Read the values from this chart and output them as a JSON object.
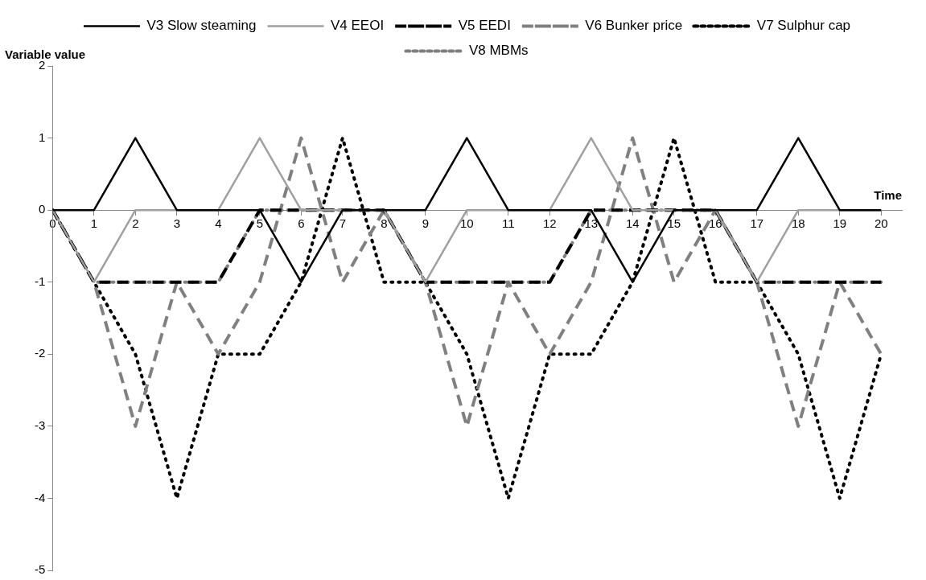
{
  "chart_data": {
    "type": "line",
    "xlabel": "Time",
    "ylabel": "Variable value",
    "x": [
      0,
      1,
      2,
      3,
      4,
      5,
      6,
      7,
      8,
      9,
      10,
      11,
      12,
      13,
      14,
      15,
      16,
      17,
      18,
      19,
      20
    ],
    "xlim": [
      0,
      20.5
    ],
    "xticks": [
      0,
      1,
      2,
      3,
      4,
      5,
      6,
      7,
      8,
      9,
      10,
      11,
      12,
      13,
      14,
      15,
      16,
      17,
      18,
      19,
      20
    ],
    "ylim": [
      -5,
      2
    ],
    "yticks": [
      -5,
      -4,
      -3,
      -2,
      -1,
      0,
      1,
      2
    ],
    "grid": false,
    "legend": "top",
    "marker": "none",
    "series": [
      {
        "name": "V3 Slow steaming",
        "color": "#000000",
        "line_style": "solid",
        "values": [
          0,
          0,
          1,
          0,
          0,
          0,
          -1,
          0,
          0,
          0,
          1,
          0,
          0,
          0,
          -1,
          0,
          0,
          0,
          1,
          0,
          0
        ]
      },
      {
        "name": "V4 EEOI",
        "color": "#a0a0a0",
        "line_style": "solid",
        "values": [
          0,
          -1,
          0,
          0,
          0,
          1,
          0,
          0,
          0,
          -1,
          0,
          0,
          0,
          1,
          0,
          0,
          0,
          -1,
          0,
          0,
          0
        ]
      },
      {
        "name": "V5 EEDI",
        "color": "#000000",
        "line_style": "dashed",
        "values": [
          0,
          -1,
          -1,
          -1,
          -1,
          0,
          0,
          0,
          0,
          -1,
          -1,
          -1,
          -1,
          0,
          0,
          0,
          0,
          -1,
          -1,
          -1,
          -1
        ]
      },
      {
        "name": "V6 Bunker price",
        "color": "#808080",
        "line_style": "dashed",
        "values": [
          0,
          -1,
          -3,
          -1,
          -2,
          -1,
          1,
          -1,
          0,
          -1,
          -3,
          -1,
          -2,
          -1,
          1,
          -1,
          0,
          -1,
          -3,
          -1,
          -2
        ]
      },
      {
        "name": "V7 Sulphur cap",
        "color": "#000000",
        "line_style": "dotted",
        "values": [
          0,
          -1,
          -2,
          -4,
          -2,
          -2,
          -1,
          1,
          -1,
          -1,
          -2,
          -4,
          -2,
          -2,
          -1,
          1,
          -1,
          -1,
          -2,
          -4,
          -2
        ]
      },
      {
        "name": "V8 MBMs",
        "color": "#808080",
        "line_style": "dotted",
        "values": [
          0,
          -1,
          -1,
          -1,
          -1,
          0,
          0,
          0,
          0,
          -1,
          -1,
          -1,
          -1,
          0,
          0,
          0,
          0,
          -1,
          -1,
          -1,
          -1
        ]
      }
    ]
  }
}
